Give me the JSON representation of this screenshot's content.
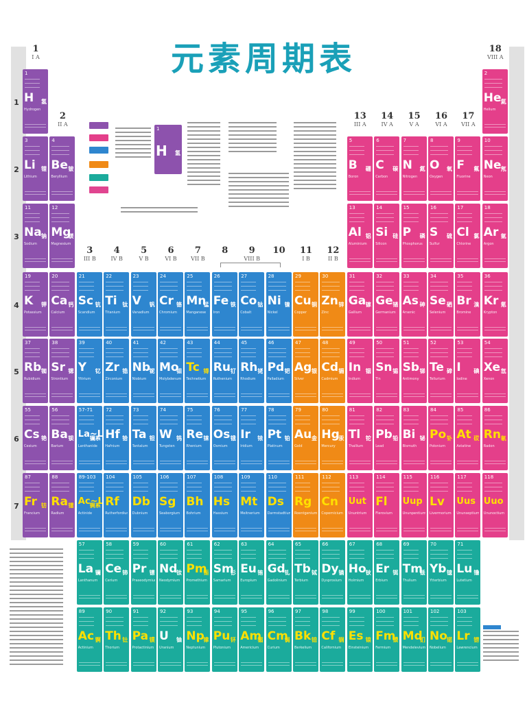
{
  "title": "元素周期表",
  "colors": {
    "alkali": "#8d52ad",
    "nonmetal": "#e43f8a",
    "transition": "#2e86cf",
    "ib_iib": "#f08a16",
    "lanthanide": "#1bab9c",
    "synthetic_text": "#ffe000"
  },
  "groups": [
    {
      "n": "1",
      "r": "I A"
    },
    {
      "n": "2",
      "r": "II A"
    },
    {
      "n": "3",
      "r": "III B"
    },
    {
      "n": "4",
      "r": "IV B"
    },
    {
      "n": "5",
      "r": "V B"
    },
    {
      "n": "6",
      "r": "VI B"
    },
    {
      "n": "7",
      "r": "VII B"
    },
    {
      "n": "8",
      "r": ""
    },
    {
      "n": "9",
      "r": "VIII B"
    },
    {
      "n": "10",
      "r": ""
    },
    {
      "n": "11",
      "r": "I B"
    },
    {
      "n": "12",
      "r": "II B"
    },
    {
      "n": "13",
      "r": "III A"
    },
    {
      "n": "14",
      "r": "IV A"
    },
    {
      "n": "15",
      "r": "V A"
    },
    {
      "n": "16",
      "r": "VI A"
    },
    {
      "n": "17",
      "r": "VII A"
    },
    {
      "n": "18",
      "r": "VIII A"
    }
  ],
  "periods": [
    "1",
    "2",
    "3",
    "4",
    "5",
    "6",
    "7"
  ],
  "elements": [
    {
      "z": "1",
      "s": "H",
      "c": "氢",
      "e": "Hydrogen",
      "g": 1,
      "p": 1,
      "cat": "alkali"
    },
    {
      "z": "2",
      "s": "He",
      "c": "氦",
      "e": "Helium",
      "g": 18,
      "p": 1,
      "cat": "nonmetal"
    },
    {
      "z": "3",
      "s": "Li",
      "c": "锂",
      "e": "Lithium",
      "g": 1,
      "p": 2,
      "cat": "alkali"
    },
    {
      "z": "4",
      "s": "Be",
      "c": "铍",
      "e": "Beryllium",
      "g": 2,
      "p": 2,
      "cat": "alkali"
    },
    {
      "z": "5",
      "s": "B",
      "c": "硼",
      "e": "Boron",
      "g": 13,
      "p": 2,
      "cat": "nonmetal"
    },
    {
      "z": "6",
      "s": "C",
      "c": "碳",
      "e": "Carbon",
      "g": 14,
      "p": 2,
      "cat": "nonmetal"
    },
    {
      "z": "7",
      "s": "N",
      "c": "氮",
      "e": "Nitrogen",
      "g": 15,
      "p": 2,
      "cat": "nonmetal"
    },
    {
      "z": "8",
      "s": "O",
      "c": "氧",
      "e": "Oxygen",
      "g": 16,
      "p": 2,
      "cat": "nonmetal"
    },
    {
      "z": "9",
      "s": "F",
      "c": "氟",
      "e": "Fluorine",
      "g": 17,
      "p": 2,
      "cat": "nonmetal"
    },
    {
      "z": "10",
      "s": "Ne",
      "c": "氖",
      "e": "Neon",
      "g": 18,
      "p": 2,
      "cat": "nonmetal"
    },
    {
      "z": "11",
      "s": "Na",
      "c": "钠",
      "e": "Sodium",
      "g": 1,
      "p": 3,
      "cat": "alkali"
    },
    {
      "z": "12",
      "s": "Mg",
      "c": "镁",
      "e": "Magnesium",
      "g": 2,
      "p": 3,
      "cat": "alkali"
    },
    {
      "z": "13",
      "s": "Al",
      "c": "铝",
      "e": "Aluminium",
      "g": 13,
      "p": 3,
      "cat": "nonmetal"
    },
    {
      "z": "14",
      "s": "Si",
      "c": "硅",
      "e": "Silicon",
      "g": 14,
      "p": 3,
      "cat": "nonmetal"
    },
    {
      "z": "15",
      "s": "P",
      "c": "磷",
      "e": "Phosphorus",
      "g": 15,
      "p": 3,
      "cat": "nonmetal"
    },
    {
      "z": "16",
      "s": "S",
      "c": "硫",
      "e": "Sulfur",
      "g": 16,
      "p": 3,
      "cat": "nonmetal"
    },
    {
      "z": "17",
      "s": "Cl",
      "c": "氯",
      "e": "Chlorine",
      "g": 17,
      "p": 3,
      "cat": "nonmetal"
    },
    {
      "z": "18",
      "s": "Ar",
      "c": "氩",
      "e": "Argon",
      "g": 18,
      "p": 3,
      "cat": "nonmetal"
    },
    {
      "z": "19",
      "s": "K",
      "c": "钾",
      "e": "Potassium",
      "g": 1,
      "p": 4,
      "cat": "alkali"
    },
    {
      "z": "20",
      "s": "Ca",
      "c": "钙",
      "e": "Calcium",
      "g": 2,
      "p": 4,
      "cat": "alkali"
    },
    {
      "z": "21",
      "s": "Sc",
      "c": "钪",
      "e": "Scandium",
      "g": 3,
      "p": 4,
      "cat": "transition"
    },
    {
      "z": "22",
      "s": "Ti",
      "c": "钛",
      "e": "Titanium",
      "g": 4,
      "p": 4,
      "cat": "transition"
    },
    {
      "z": "23",
      "s": "V",
      "c": "钒",
      "e": "Vanadium",
      "g": 5,
      "p": 4,
      "cat": "transition"
    },
    {
      "z": "24",
      "s": "Cr",
      "c": "铬",
      "e": "Chromium",
      "g": 6,
      "p": 4,
      "cat": "transition"
    },
    {
      "z": "25",
      "s": "Mn",
      "c": "锰",
      "e": "Manganese",
      "g": 7,
      "p": 4,
      "cat": "transition"
    },
    {
      "z": "26",
      "s": "Fe",
      "c": "铁",
      "e": "Iron",
      "g": 8,
      "p": 4,
      "cat": "transition"
    },
    {
      "z": "27",
      "s": "Co",
      "c": "钴",
      "e": "Cobalt",
      "g": 9,
      "p": 4,
      "cat": "transition"
    },
    {
      "z": "28",
      "s": "Ni",
      "c": "镍",
      "e": "Nickel",
      "g": 10,
      "p": 4,
      "cat": "transition"
    },
    {
      "z": "29",
      "s": "Cu",
      "c": "铜",
      "e": "Copper",
      "g": 11,
      "p": 4,
      "cat": "ib_iib"
    },
    {
      "z": "30",
      "s": "Zn",
      "c": "锌",
      "e": "Zinc",
      "g": 12,
      "p": 4,
      "cat": "ib_iib"
    },
    {
      "z": "31",
      "s": "Ga",
      "c": "镓",
      "e": "Gallium",
      "g": 13,
      "p": 4,
      "cat": "nonmetal"
    },
    {
      "z": "32",
      "s": "Ge",
      "c": "锗",
      "e": "Germanium",
      "g": 14,
      "p": 4,
      "cat": "nonmetal"
    },
    {
      "z": "33",
      "s": "As",
      "c": "砷",
      "e": "Arsenic",
      "g": 15,
      "p": 4,
      "cat": "nonmetal"
    },
    {
      "z": "34",
      "s": "Se",
      "c": "硒",
      "e": "Selenium",
      "g": 16,
      "p": 4,
      "cat": "nonmetal"
    },
    {
      "z": "35",
      "s": "Br",
      "c": "溴",
      "e": "Bromine",
      "g": 17,
      "p": 4,
      "cat": "nonmetal"
    },
    {
      "z": "36",
      "s": "Kr",
      "c": "氪",
      "e": "Krypton",
      "g": 18,
      "p": 4,
      "cat": "nonmetal"
    },
    {
      "z": "37",
      "s": "Rb",
      "c": "铷",
      "e": "Rubidium",
      "g": 1,
      "p": 5,
      "cat": "alkali"
    },
    {
      "z": "38",
      "s": "Sr",
      "c": "锶",
      "e": "Strontium",
      "g": 2,
      "p": 5,
      "cat": "alkali"
    },
    {
      "z": "39",
      "s": "Y",
      "c": "钇",
      "e": "Yttrium",
      "g": 3,
      "p": 5,
      "cat": "transition"
    },
    {
      "z": "40",
      "s": "Zr",
      "c": "锆",
      "e": "Zirconium",
      "g": 4,
      "p": 5,
      "cat": "transition"
    },
    {
      "z": "41",
      "s": "Nb",
      "c": "铌",
      "e": "Niobium",
      "g": 5,
      "p": 5,
      "cat": "transition"
    },
    {
      "z": "42",
      "s": "Mo",
      "c": "钼",
      "e": "Molybdenum",
      "g": 6,
      "p": 5,
      "cat": "transition"
    },
    {
      "z": "43",
      "s": "Tc",
      "c": "锝",
      "e": "Technetium",
      "g": 7,
      "p": 5,
      "cat": "transition",
      "syn": true
    },
    {
      "z": "44",
      "s": "Ru",
      "c": "钌",
      "e": "Ruthenium",
      "g": 8,
      "p": 5,
      "cat": "transition"
    },
    {
      "z": "45",
      "s": "Rh",
      "c": "铑",
      "e": "Rhodium",
      "g": 9,
      "p": 5,
      "cat": "transition"
    },
    {
      "z": "46",
      "s": "Pd",
      "c": "钯",
      "e": "Palladium",
      "g": 10,
      "p": 5,
      "cat": "transition"
    },
    {
      "z": "47",
      "s": "Ag",
      "c": "银",
      "e": "Silver",
      "g": 11,
      "p": 5,
      "cat": "ib_iib"
    },
    {
      "z": "48",
      "s": "Cd",
      "c": "镉",
      "e": "Cadmium",
      "g": 12,
      "p": 5,
      "cat": "ib_iib"
    },
    {
      "z": "49",
      "s": "In",
      "c": "铟",
      "e": "Indium",
      "g": 13,
      "p": 5,
      "cat": "nonmetal"
    },
    {
      "z": "50",
      "s": "Sn",
      "c": "锡",
      "e": "Tin",
      "g": 14,
      "p": 5,
      "cat": "nonmetal"
    },
    {
      "z": "51",
      "s": "Sb",
      "c": "锑",
      "e": "Antimony",
      "g": 15,
      "p": 5,
      "cat": "nonmetal"
    },
    {
      "z": "52",
      "s": "Te",
      "c": "碲",
      "e": "Tellurium",
      "g": 16,
      "p": 5,
      "cat": "nonmetal"
    },
    {
      "z": "53",
      "s": "I",
      "c": "碘",
      "e": "Iodine",
      "g": 17,
      "p": 5,
      "cat": "nonmetal"
    },
    {
      "z": "54",
      "s": "Xe",
      "c": "氙",
      "e": "Xenon",
      "g": 18,
      "p": 5,
      "cat": "nonmetal"
    },
    {
      "z": "55",
      "s": "Cs",
      "c": "铯",
      "e": "Cesium",
      "g": 1,
      "p": 6,
      "cat": "alkali"
    },
    {
      "z": "56",
      "s": "Ba",
      "c": "钡",
      "e": "Barium",
      "g": 2,
      "p": 6,
      "cat": "alkali"
    },
    {
      "z": "57-71",
      "s": "La~Lu",
      "c": "镧系",
      "e": "Lanthanide",
      "g": 3,
      "p": 6,
      "cat": "transition"
    },
    {
      "z": "72",
      "s": "Hf",
      "c": "铪",
      "e": "Hafnium",
      "g": 4,
      "p": 6,
      "cat": "transition"
    },
    {
      "z": "73",
      "s": "Ta",
      "c": "钽",
      "e": "Tantalum",
      "g": 5,
      "p": 6,
      "cat": "transition"
    },
    {
      "z": "74",
      "s": "W",
      "c": "钨",
      "e": "Tungsten",
      "g": 6,
      "p": 6,
      "cat": "transition"
    },
    {
      "z": "75",
      "s": "Re",
      "c": "铼",
      "e": "Rhenium",
      "g": 7,
      "p": 6,
      "cat": "transition"
    },
    {
      "z": "76",
      "s": "Os",
      "c": "锇",
      "e": "Osmium",
      "g": 8,
      "p": 6,
      "cat": "transition"
    },
    {
      "z": "77",
      "s": "Ir",
      "c": "铱",
      "e": "Iridium",
      "g": 9,
      "p": 6,
      "cat": "transition"
    },
    {
      "z": "78",
      "s": "Pt",
      "c": "铂",
      "e": "Platinum",
      "g": 10,
      "p": 6,
      "cat": "transition"
    },
    {
      "z": "79",
      "s": "Au",
      "c": "金",
      "e": "Gold",
      "g": 11,
      "p": 6,
      "cat": "ib_iib"
    },
    {
      "z": "80",
      "s": "Hg",
      "c": "汞",
      "e": "Mercury",
      "g": 12,
      "p": 6,
      "cat": "ib_iib"
    },
    {
      "z": "81",
      "s": "Tl",
      "c": "铊",
      "e": "Thallium",
      "g": 13,
      "p": 6,
      "cat": "nonmetal"
    },
    {
      "z": "82",
      "s": "Pb",
      "c": "铅",
      "e": "Lead",
      "g": 14,
      "p": 6,
      "cat": "nonmetal"
    },
    {
      "z": "83",
      "s": "Bi",
      "c": "铋",
      "e": "Bismuth",
      "g": 15,
      "p": 6,
      "cat": "nonmetal"
    },
    {
      "z": "84",
      "s": "Po",
      "c": "钋",
      "e": "Polonium",
      "g": 16,
      "p": 6,
      "cat": "nonmetal",
      "syn": true
    },
    {
      "z": "85",
      "s": "At",
      "c": "砹",
      "e": "Astatine",
      "g": 17,
      "p": 6,
      "cat": "nonmetal",
      "syn": true
    },
    {
      "z": "86",
      "s": "Rn",
      "c": "氡",
      "e": "Radon",
      "g": 18,
      "p": 6,
      "cat": "nonmetal",
      "syn": true
    },
    {
      "z": "87",
      "s": "Fr",
      "c": "钫",
      "e": "Francium",
      "g": 1,
      "p": 7,
      "cat": "alkali",
      "syn": true
    },
    {
      "z": "88",
      "s": "Ra",
      "c": "镭",
      "e": "Radium",
      "g": 2,
      "p": 7,
      "cat": "alkali",
      "syn": true
    },
    {
      "z": "89-103",
      "s": "Ac~Lr",
      "c": "锕系",
      "e": "Actinide",
      "g": 3,
      "p": 7,
      "cat": "transition",
      "syn": true
    },
    {
      "z": "104",
      "s": "Rf",
      "c": "",
      "e": "Rutherfordium",
      "g": 4,
      "p": 7,
      "cat": "transition",
      "syn": true
    },
    {
      "z": "105",
      "s": "Db",
      "c": "",
      "e": "Dubnium",
      "g": 5,
      "p": 7,
      "cat": "transition",
      "syn": true
    },
    {
      "z": "106",
      "s": "Sg",
      "c": "",
      "e": "Seaborgium",
      "g": 6,
      "p": 7,
      "cat": "transition",
      "syn": true
    },
    {
      "z": "107",
      "s": "Bh",
      "c": "",
      "e": "Bohrium",
      "g": 7,
      "p": 7,
      "cat": "transition",
      "syn": true
    },
    {
      "z": "108",
      "s": "Hs",
      "c": "",
      "e": "Hassium",
      "g": 8,
      "p": 7,
      "cat": "transition",
      "syn": true
    },
    {
      "z": "109",
      "s": "Mt",
      "c": "",
      "e": "Meitnerium",
      "g": 9,
      "p": 7,
      "cat": "transition",
      "syn": true
    },
    {
      "z": "110",
      "s": "Ds",
      "c": "",
      "e": "Darmstadtium",
      "g": 10,
      "p": 7,
      "cat": "transition",
      "syn": true
    },
    {
      "z": "111",
      "s": "Rg",
      "c": "",
      "e": "Roentgenium",
      "g": 11,
      "p": 7,
      "cat": "ib_iib",
      "syn": true
    },
    {
      "z": "112",
      "s": "Cn",
      "c": "",
      "e": "Copernicium",
      "g": 12,
      "p": 7,
      "cat": "ib_iib",
      "syn": true
    },
    {
      "z": "113",
      "s": "Uut",
      "c": "",
      "e": "Ununtrium",
      "g": 13,
      "p": 7,
      "cat": "nonmetal",
      "syn": true
    },
    {
      "z": "114",
      "s": "Fl",
      "c": "",
      "e": "Flerovium",
      "g": 14,
      "p": 7,
      "cat": "nonmetal",
      "syn": true
    },
    {
      "z": "115",
      "s": "Uup",
      "c": "",
      "e": "Ununpentium",
      "g": 15,
      "p": 7,
      "cat": "nonmetal",
      "syn": true
    },
    {
      "z": "116",
      "s": "Lv",
      "c": "",
      "e": "Livermorium",
      "g": 16,
      "p": 7,
      "cat": "nonmetal",
      "syn": true
    },
    {
      "z": "117",
      "s": "Uus",
      "c": "",
      "e": "Ununseptium",
      "g": 17,
      "p": 7,
      "cat": "nonmetal",
      "syn": true
    },
    {
      "z": "118",
      "s": "Uuo",
      "c": "",
      "e": "Ununoctium",
      "g": 18,
      "p": 7,
      "cat": "nonmetal",
      "syn": true
    },
    {
      "z": "57",
      "s": "La",
      "c": "镧",
      "e": "Lanthanum",
      "g": 3,
      "p": 8,
      "cat": "lanthanide"
    },
    {
      "z": "58",
      "s": "Ce",
      "c": "铈",
      "e": "Cerium",
      "g": 4,
      "p": 8,
      "cat": "lanthanide"
    },
    {
      "z": "59",
      "s": "Pr",
      "c": "镨",
      "e": "Praseodymium",
      "g": 5,
      "p": 8,
      "cat": "lanthanide"
    },
    {
      "z": "60",
      "s": "Nd",
      "c": "钕",
      "e": "Neodymium",
      "g": 6,
      "p": 8,
      "cat": "lanthanide"
    },
    {
      "z": "61",
      "s": "Pm",
      "c": "钷",
      "e": "Promethium",
      "g": 7,
      "p": 8,
      "cat": "lanthanide",
      "syn": true
    },
    {
      "z": "62",
      "s": "Sm",
      "c": "钐",
      "e": "Samarium",
      "g": 8,
      "p": 8,
      "cat": "lanthanide"
    },
    {
      "z": "63",
      "s": "Eu",
      "c": "铕",
      "e": "Europium",
      "g": 9,
      "p": 8,
      "cat": "lanthanide"
    },
    {
      "z": "64",
      "s": "Gd",
      "c": "钆",
      "e": "Gadolinium",
      "g": 10,
      "p": 8,
      "cat": "lanthanide"
    },
    {
      "z": "65",
      "s": "Tb",
      "c": "铽",
      "e": "Terbium",
      "g": 11,
      "p": 8,
      "cat": "lanthanide"
    },
    {
      "z": "66",
      "s": "Dy",
      "c": "镝",
      "e": "Dysprosium",
      "g": 12,
      "p": 8,
      "cat": "lanthanide"
    },
    {
      "z": "67",
      "s": "Ho",
      "c": "钬",
      "e": "Holmium",
      "g": 13,
      "p": 8,
      "cat": "lanthanide"
    },
    {
      "z": "68",
      "s": "Er",
      "c": "铒",
      "e": "Erbium",
      "g": 14,
      "p": 8,
      "cat": "lanthanide"
    },
    {
      "z": "69",
      "s": "Tm",
      "c": "铥",
      "e": "Thulium",
      "g": 15,
      "p": 8,
      "cat": "lanthanide"
    },
    {
      "z": "70",
      "s": "Yb",
      "c": "镱",
      "e": "Ytterbium",
      "g": 16,
      "p": 8,
      "cat": "lanthanide"
    },
    {
      "z": "71",
      "s": "Lu",
      "c": "镥",
      "e": "Lutetium",
      "g": 17,
      "p": 8,
      "cat": "lanthanide"
    },
    {
      "z": "89",
      "s": "Ac",
      "c": "锕",
      "e": "Actinium",
      "g": 3,
      "p": 9,
      "cat": "lanthanide",
      "syn": true
    },
    {
      "z": "90",
      "s": "Th",
      "c": "钍",
      "e": "Thorium",
      "g": 4,
      "p": 9,
      "cat": "lanthanide",
      "syn": true
    },
    {
      "z": "91",
      "s": "Pa",
      "c": "镤",
      "e": "Protactinium",
      "g": 5,
      "p": 9,
      "cat": "lanthanide",
      "syn": true
    },
    {
      "z": "92",
      "s": "U",
      "c": "铀",
      "e": "Uranium",
      "g": 6,
      "p": 9,
      "cat": "lanthanide"
    },
    {
      "z": "93",
      "s": "Np",
      "c": "镎",
      "e": "Neptunium",
      "g": 7,
      "p": 9,
      "cat": "lanthanide",
      "syn": true
    },
    {
      "z": "94",
      "s": "Pu",
      "c": "钚",
      "e": "Plutonium",
      "g": 8,
      "p": 9,
      "cat": "lanthanide",
      "syn": true
    },
    {
      "z": "95",
      "s": "Am",
      "c": "镅",
      "e": "Americium",
      "g": 9,
      "p": 9,
      "cat": "lanthanide",
      "syn": true
    },
    {
      "z": "96",
      "s": "Cm",
      "c": "锔",
      "e": "Curium",
      "g": 10,
      "p": 9,
      "cat": "lanthanide",
      "syn": true
    },
    {
      "z": "97",
      "s": "Bk",
      "c": "锫",
      "e": "Berkelium",
      "g": 11,
      "p": 9,
      "cat": "lanthanide",
      "syn": true
    },
    {
      "z": "98",
      "s": "Cf",
      "c": "锎",
      "e": "Californium",
      "g": 12,
      "p": 9,
      "cat": "lanthanide",
      "syn": true
    },
    {
      "z": "99",
      "s": "Es",
      "c": "锿",
      "e": "Einsteinium",
      "g": 13,
      "p": 9,
      "cat": "lanthanide",
      "syn": true
    },
    {
      "z": "100",
      "s": "Fm",
      "c": "镄",
      "e": "Fermium",
      "g": 14,
      "p": 9,
      "cat": "lanthanide",
      "syn": true
    },
    {
      "z": "101",
      "s": "Md",
      "c": "钔",
      "e": "Mendelevium",
      "g": 15,
      "p": 9,
      "cat": "lanthanide",
      "syn": true
    },
    {
      "z": "102",
      "s": "No",
      "c": "锘",
      "e": "Nobelium",
      "g": 16,
      "p": 9,
      "cat": "lanthanide",
      "syn": true
    },
    {
      "z": "103",
      "s": "Lr",
      "c": "铹",
      "e": "Lawrencium",
      "g": 17,
      "p": 9,
      "cat": "lanthanide",
      "syn": true
    }
  ],
  "key": {
    "symbol": "H",
    "name": "氢",
    "number": "1",
    "sample_label": "1"
  }
}
